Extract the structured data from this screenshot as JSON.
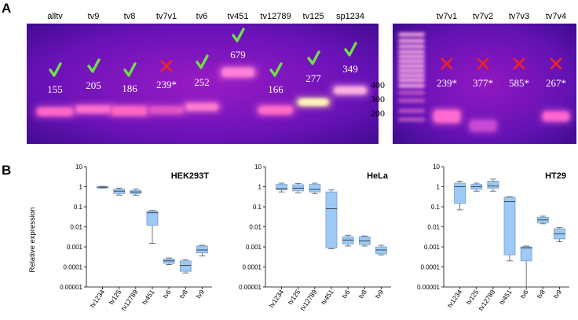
{
  "panel_a": {
    "letter": "A",
    "left_gel": {
      "lanes": [
        {
          "label": "alltv",
          "size": "155",
          "result": "check"
        },
        {
          "label": "tv9",
          "size": "205",
          "result": "check"
        },
        {
          "label": "tv8",
          "size": "186",
          "result": "check"
        },
        {
          "label": "tv7v1",
          "size": "239*",
          "result": "cross"
        },
        {
          "label": "tv6",
          "size": "252",
          "result": "check"
        },
        {
          "label": "tv451",
          "size": "679",
          "result": "check"
        },
        {
          "label": "tv12789",
          "size": "166",
          "result": "check"
        },
        {
          "label": "tv125",
          "size": "277",
          "result": "check"
        },
        {
          "label": "sp1234",
          "size": "349",
          "result": "check"
        }
      ]
    },
    "ladder_marks": [
      "400",
      "300",
      "200"
    ],
    "right_gel": {
      "lanes": [
        {
          "label": "tv7v1",
          "size": "239*",
          "result": "cross"
        },
        {
          "label": "tv7v2",
          "size": "377*",
          "result": "cross"
        },
        {
          "label": "tv7v3",
          "size": "585*",
          "result": "cross"
        },
        {
          "label": "tv7v4",
          "size": "267*",
          "result": "cross"
        }
      ]
    }
  },
  "panel_b": {
    "letter": "B",
    "ylabel": "Relative expression",
    "y_ticks": [
      "10",
      "1",
      "0.1",
      "0.01",
      "0.001",
      "0.0001",
      "0.00001"
    ],
    "colors": {
      "box_fill": "#9ec9f5",
      "box_stroke": "#6f9fd0"
    }
  },
  "chart_data": [
    {
      "type": "box",
      "title": "HEK293T",
      "yscale": "log",
      "ylim": [
        1e-05,
        10
      ],
      "categories": [
        "tv1234",
        "tv125",
        "tv12789",
        "tv451",
        "tv6",
        "tv8",
        "tv9"
      ],
      "boxes": [
        {
          "min": 0.85,
          "q1": 0.88,
          "median": 0.95,
          "q3": 1.0,
          "max": 1.05
        },
        {
          "min": 0.38,
          "q1": 0.45,
          "median": 0.6,
          "q3": 0.75,
          "max": 0.85
        },
        {
          "min": 0.38,
          "q1": 0.45,
          "median": 0.55,
          "q3": 0.65,
          "max": 0.78
        },
        {
          "min": 0.0015,
          "q1": 0.012,
          "median": 0.05,
          "q3": 0.06,
          "max": 0.065
        },
        {
          "min": 0.00013,
          "q1": 0.00015,
          "median": 0.0002,
          "q3": 0.00025,
          "max": 0.00028
        },
        {
          "min": 5e-05,
          "q1": 6e-05,
          "median": 0.00012,
          "q3": 0.0002,
          "max": 0.00023
        },
        {
          "min": 0.00035,
          "q1": 0.0005,
          "median": 0.0007,
          "q3": 0.0011,
          "max": 0.0012
        }
      ]
    },
    {
      "type": "box",
      "title": "HeLa",
      "yscale": "log",
      "ylim": [
        1e-05,
        10
      ],
      "categories": [
        "tv1234",
        "tv125",
        "tv12789",
        "tv451",
        "tv6",
        "tv8",
        "tv9"
      ],
      "boxes": [
        {
          "min": 0.55,
          "q1": 0.7,
          "median": 0.8,
          "q3": 1.3,
          "max": 1.5
        },
        {
          "min": 0.5,
          "q1": 0.62,
          "median": 0.85,
          "q3": 1.25,
          "max": 1.45
        },
        {
          "min": 0.45,
          "q1": 0.55,
          "median": 0.75,
          "q3": 1.3,
          "max": 1.5
        },
        {
          "min": 0.0008,
          "q1": 0.0009,
          "median": 0.08,
          "q3": 0.55,
          "max": 0.7
        },
        {
          "min": 0.0011,
          "q1": 0.0014,
          "median": 0.0022,
          "q3": 0.0032,
          "max": 0.0038
        },
        {
          "min": 0.0011,
          "q1": 0.0013,
          "median": 0.002,
          "q3": 0.0032,
          "max": 0.0035
        },
        {
          "min": 0.0004,
          "q1": 0.00045,
          "median": 0.0007,
          "q3": 0.001,
          "max": 0.0012
        }
      ]
    },
    {
      "type": "box",
      "title": "HT29",
      "yscale": "log",
      "ylim": [
        1e-05,
        10
      ],
      "categories": [
        "tv1234",
        "tv125",
        "tv12789",
        "tv451",
        "tv6",
        "tv8",
        "tv9"
      ],
      "boxes": [
        {
          "min": 0.07,
          "q1": 0.15,
          "median": 1.0,
          "q3": 1.5,
          "max": 1.9
        },
        {
          "min": 0.6,
          "q1": 0.75,
          "median": 1.0,
          "q3": 1.3,
          "max": 1.5
        },
        {
          "min": 0.6,
          "q1": 0.85,
          "median": 1.1,
          "q3": 1.9,
          "max": 2.4
        },
        {
          "min": 0.0002,
          "q1": 0.0004,
          "median": 0.18,
          "q3": 0.3,
          "max": 0.32
        },
        {
          "min": 1e-05,
          "q1": 0.0002,
          "median": 0.0009,
          "q3": 0.001,
          "max": 0.0011
        },
        {
          "min": 0.014,
          "q1": 0.016,
          "median": 0.022,
          "q3": 0.03,
          "max": 0.034
        },
        {
          "min": 0.0018,
          "q1": 0.0025,
          "median": 0.0045,
          "q3": 0.008,
          "max": 0.009
        }
      ]
    }
  ]
}
